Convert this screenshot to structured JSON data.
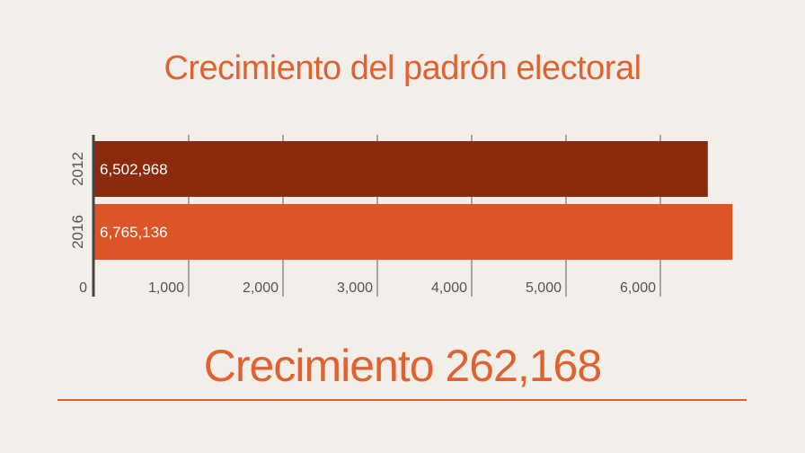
{
  "title": "Crecimiento del padrón electoral",
  "summary": "Crecimiento 262,168",
  "colors": {
    "background": "#f2efea",
    "title": "#e0622f",
    "bar_2012": "#8b2a0c",
    "bar_2016": "#dd5428",
    "grid": "#8c8c8c",
    "axis": "#444444",
    "tick_text": "#555555",
    "bar_label": "#ffffff"
  },
  "chart_data": {
    "type": "bar",
    "orientation": "horizontal",
    "title": "Crecimiento del padrón electoral",
    "categories": [
      "2012",
      "2016"
    ],
    "values": [
      6502968,
      6765136
    ],
    "value_labels": [
      "6,502,968",
      "6,765,136"
    ],
    "x_ticks": [
      0,
      1000,
      2000,
      3000,
      4000,
      5000,
      6000
    ],
    "x_tick_labels": [
      "0",
      "1,000",
      "2,000",
      "3,000",
      "4,000",
      "5,000",
      "6,000"
    ],
    "x_unit_scale": 1000,
    "xlim": [
      0,
      6780000
    ],
    "grid": true
  }
}
